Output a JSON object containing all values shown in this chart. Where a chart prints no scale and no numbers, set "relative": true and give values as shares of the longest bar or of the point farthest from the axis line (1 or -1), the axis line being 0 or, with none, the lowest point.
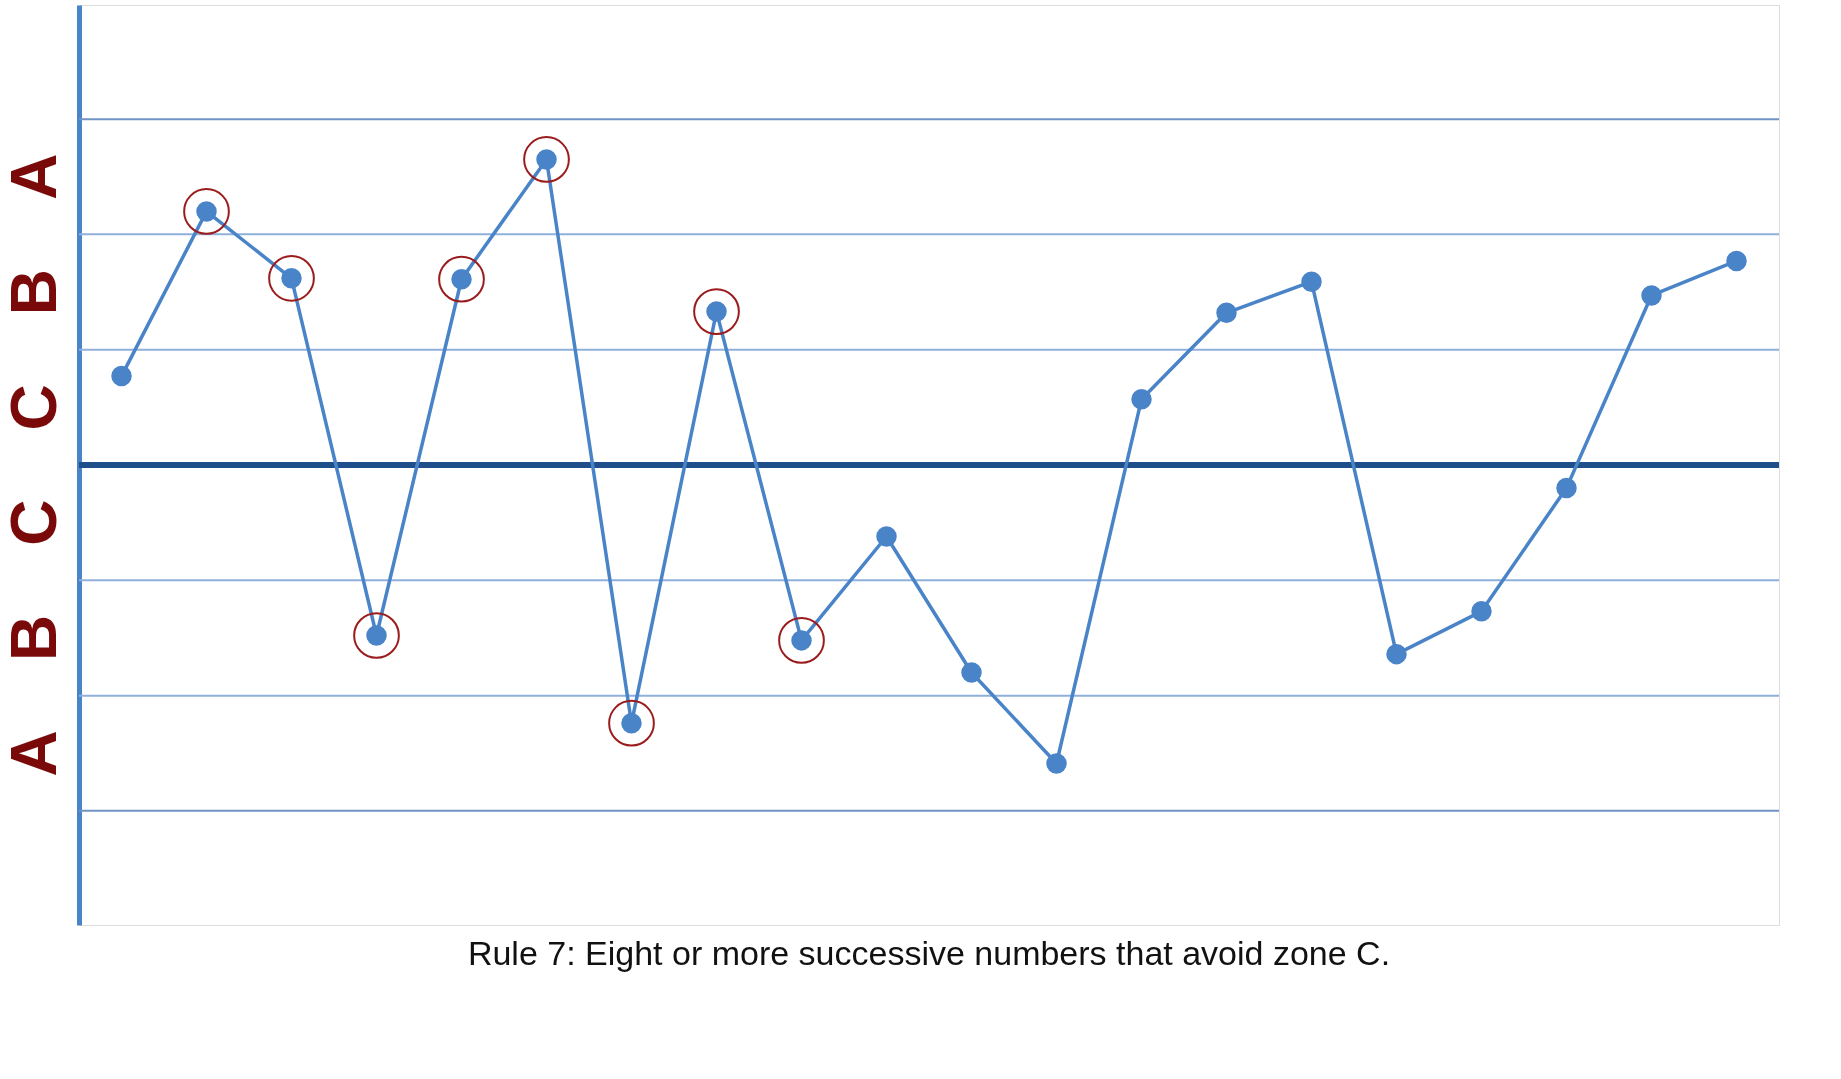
{
  "chart_data": {
    "type": "line",
    "title": "Rule 7: Eight or more successive numbers that avoid zone C.",
    "relative": true,
    "categories": [
      null,
      null,
      null,
      null,
      null,
      null,
      null,
      null,
      null,
      null,
      null,
      null,
      null,
      null,
      null,
      null,
      null,
      null,
      null,
      null
    ],
    "series": [
      {
        "color": "#4a84c8",
        "marker": "circle",
        "values": [
          0.291,
          0.83,
          0.611,
          -0.558,
          0.608,
          1,
          -0.845,
          0.502,
          -0.574,
          -0.234,
          -0.679,
          -0.977,
          0.215,
          0.498,
          0.6,
          -0.619,
          -0.479,
          -0.075,
          0.555,
          0.668
        ]
      }
    ],
    "annotations": [
      "A",
      "B",
      "C",
      "C",
      "B",
      "A"
    ],
    "ref_lines": [
      {
        "axis": "y",
        "value": -1.132,
        "color": "#6f93c4"
      },
      {
        "axis": "y",
        "value": -0.755,
        "color": "#8fb0da"
      },
      {
        "axis": "y",
        "value": -0.377,
        "color": "#8fb0da"
      },
      {
        "axis": "y",
        "value": 0,
        "color": "#1f4f8a",
        "line_style": "solid"
      },
      {
        "axis": "y",
        "value": 0.377,
        "color": "#8fb0da"
      },
      {
        "axis": "y",
        "value": 0.755,
        "color": "#8fb0da"
      },
      {
        "axis": "y",
        "value": 1.132,
        "color": "#6f93c4"
      }
    ]
  }
}
